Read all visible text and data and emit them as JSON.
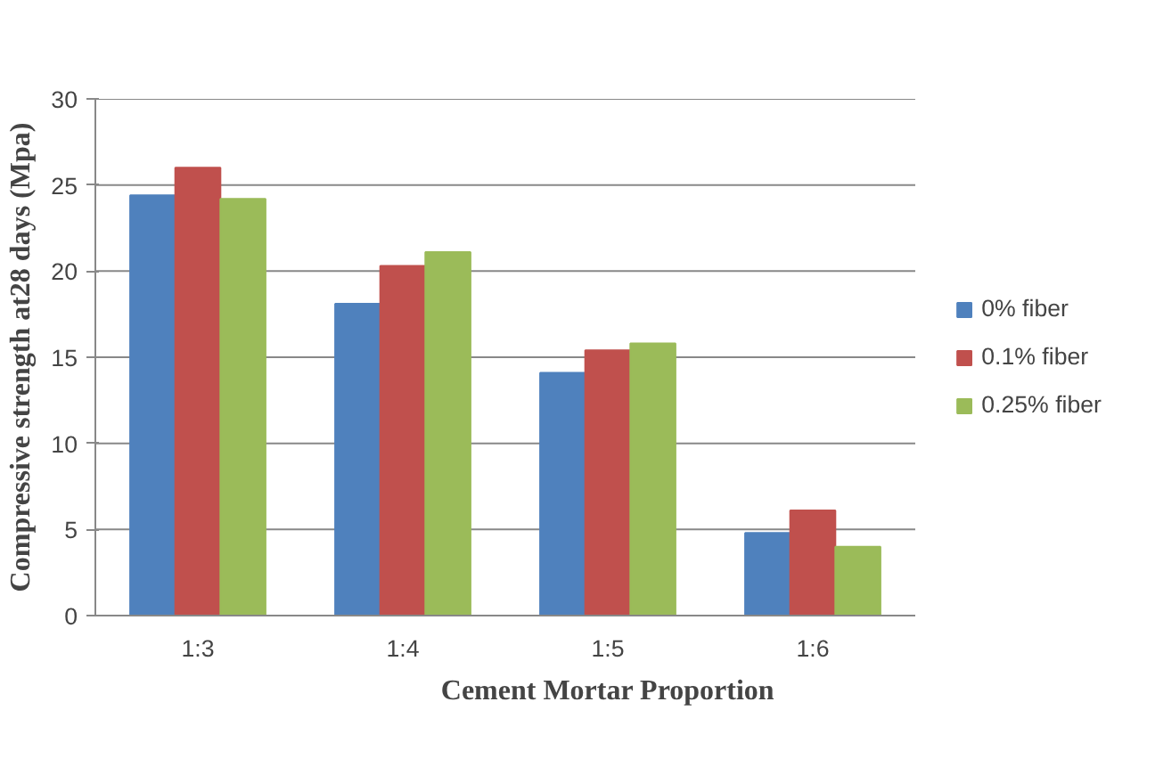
{
  "chart_data": {
    "type": "bar",
    "xlabel": "Cement Mortar Proportion",
    "ylabel": "Compressive strength at28 days (Mpa)",
    "categories": [
      "1:3",
      "1:4",
      "1:5",
      "1:6"
    ],
    "series": [
      {
        "name": "0% fiber",
        "color": "#4f81bd",
        "values": [
          24.4,
          18.1,
          14.1,
          4.8
        ]
      },
      {
        "name": "0.1% fiber",
        "color": "#c0504d",
        "values": [
          26.0,
          20.3,
          15.4,
          6.1
        ]
      },
      {
        "name": "0.25% fiber",
        "color": "#9bbb59",
        "values": [
          24.2,
          21.1,
          15.8,
          4.0
        ]
      }
    ],
    "ylim": [
      0,
      30
    ],
    "yticks": [
      0,
      5,
      10,
      15,
      20,
      25,
      30
    ],
    "grid": "y",
    "legend": "right"
  }
}
